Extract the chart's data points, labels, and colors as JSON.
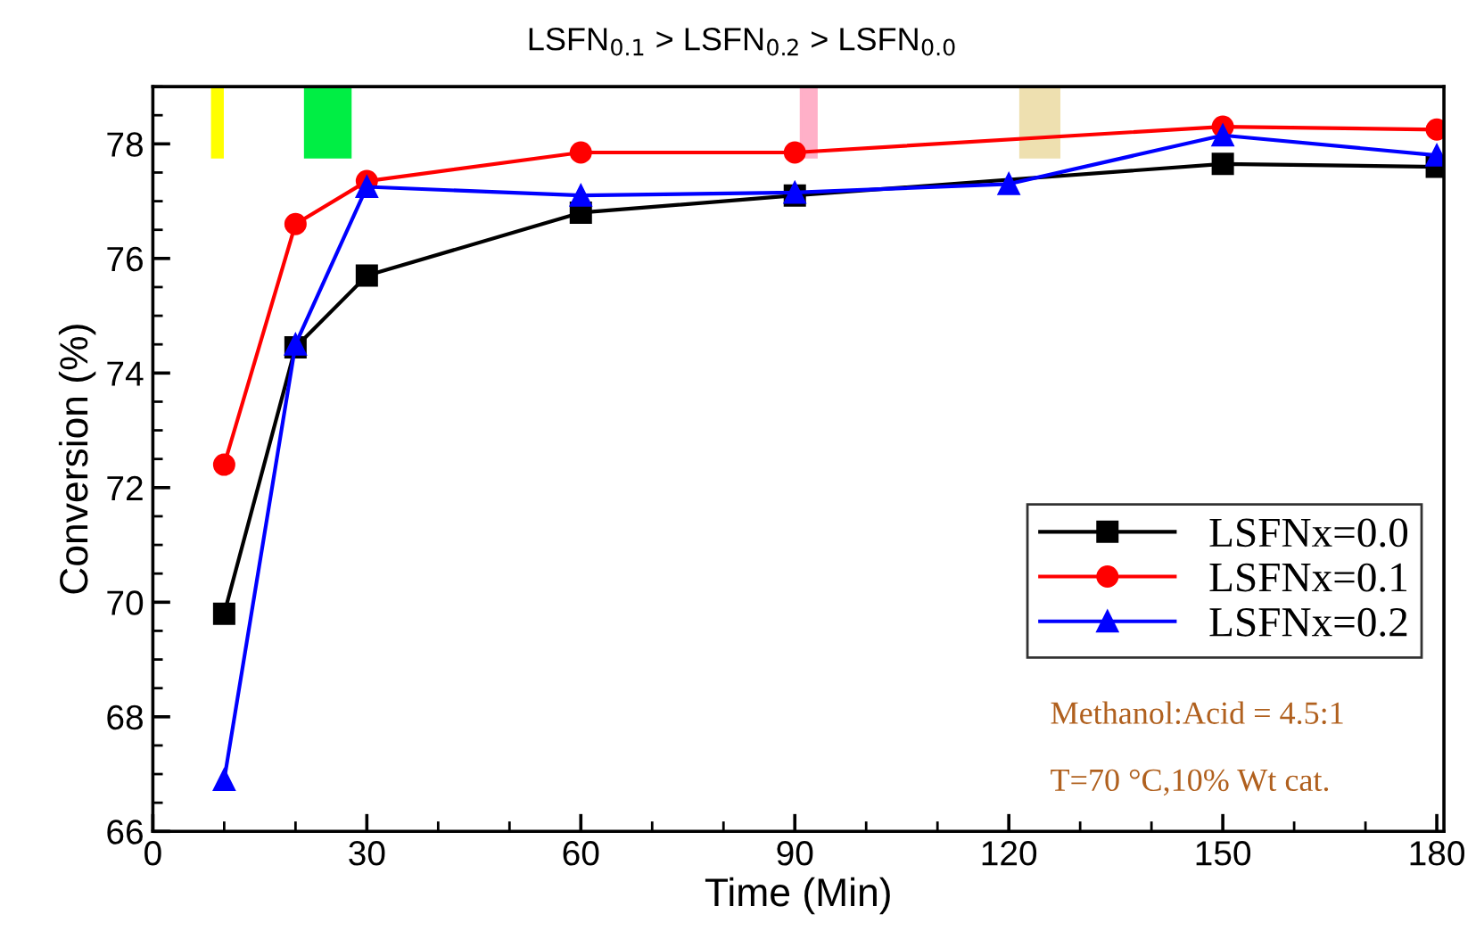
{
  "chart_data": {
    "type": "line",
    "title": "LSFN$_{0.1}$ > LSFN$_{0.2}$ > LSFN$_{0.0}$",
    "xlabel": "Time (Min)",
    "ylabel": "Conversion (%)",
    "x": [
      10,
      20,
      30,
      60,
      90,
      120,
      150,
      180
    ],
    "series": [
      {
        "name": "LSFNx=0.0",
        "color": "#000000",
        "marker": "square",
        "values": [
          69.8,
          74.45,
          75.7,
          76.8,
          77.1,
          null,
          77.65,
          77.6
        ]
      },
      {
        "name": "LSFNx=0.1",
        "color": "#ff0000",
        "marker": "circle",
        "values": [
          72.4,
          76.6,
          77.35,
          77.85,
          77.85,
          null,
          78.3,
          78.25
        ]
      },
      {
        "name": "LSFNx=0.2",
        "color": "#0000ff",
        "marker": "triangle",
        "values": [
          66.9,
          74.5,
          77.25,
          77.1,
          77.15,
          77.3,
          78.15,
          77.8
        ]
      }
    ],
    "xlim": [
      0,
      181
    ],
    "xticks": [
      0,
      30,
      60,
      90,
      120,
      150,
      180
    ],
    "ylim": [
      66,
      79
    ],
    "yticks": [
      66,
      68,
      70,
      72,
      74,
      76,
      78
    ],
    "annotations": [
      "Methanol:Acid = 4.5:1",
      "T=70 °C,10% Wt cat."
    ],
    "legend": "bottom right",
    "grid": false,
    "line_style": "solid"
  }
}
